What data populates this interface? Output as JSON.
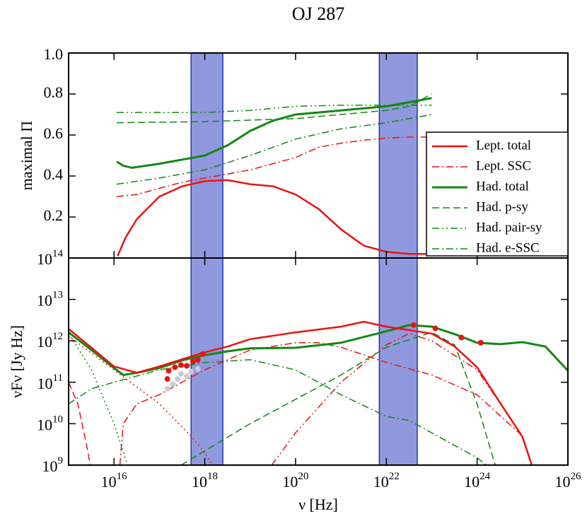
{
  "chart_data": [
    {
      "type": "line",
      "title": "OJ 287",
      "ylabel": "maximal Π",
      "xscale": "log",
      "xlim": [
        1000000000000000.0,
        1e+26
      ],
      "xticks": [
        1e+16,
        1e+18,
        1e+20,
        1e+22,
        1e+24
      ],
      "ylim": [
        0,
        1
      ],
      "yticks": [
        0.2,
        0.4,
        0.6,
        0.8,
        {
          "value": 1,
          "label": "1.0"
        }
      ],
      "bands": [
        [
          5e+17,
          2.5e+18
        ],
        [
          7e+21,
          4.8e+22
        ]
      ],
      "band_color": "#2233bb",
      "legend": "lower right",
      "series": [
        {
          "name": "Lept. total",
          "color": "#ee1111",
          "dash": "solid",
          "width": 2.5,
          "x": [
            1.2e+16,
            1.8e+16,
            3.2e+16,
            1e+17,
            3.2e+17,
            1e+18,
            3.2e+18,
            1e+19,
            3.2e+19,
            1e+20,
            3.2e+20,
            1e+21,
            3.2e+21,
            1e+22,
            3.2e+22,
            8e+22
          ],
          "values": [
            0.01,
            0.1,
            0.19,
            0.3,
            0.35,
            0.375,
            0.38,
            0.36,
            0.35,
            0.31,
            0.24,
            0.14,
            0.06,
            0.03,
            0.02,
            0.02
          ]
        },
        {
          "name": "Lept. SSC",
          "color": "#ee1111",
          "dash": "dashdot",
          "width": 1.5,
          "x": [
            1.15e+16,
            3.2e+16,
            1e+17,
            3.2e+17,
            1e+18,
            3.2e+18,
            1e+19,
            1e+20,
            3.2e+20,
            1e+21,
            3.2e+21,
            1e+22,
            3.2e+22,
            8e+22
          ],
          "values": [
            0.3,
            0.31,
            0.34,
            0.37,
            0.39,
            0.41,
            0.43,
            0.49,
            0.54,
            0.56,
            0.575,
            0.585,
            0.59,
            0.59
          ]
        },
        {
          "name": "Had. total",
          "color": "#118811",
          "dash": "solid",
          "width": 3,
          "x": [
            1.15e+16,
            1.6e+16,
            2.5e+16,
            1e+17,
            3.2e+17,
            1e+18,
            3.2e+18,
            1e+19,
            3.2e+19,
            1e+20,
            1e+21,
            1e+22,
            3.2e+22,
            1e+23
          ],
          "values": [
            0.47,
            0.45,
            0.44,
            0.46,
            0.48,
            0.5,
            0.55,
            0.62,
            0.67,
            0.7,
            0.72,
            0.74,
            0.76,
            0.78
          ]
        },
        {
          "name": "Had. p-sy",
          "color": "#118811",
          "dash": "dashed",
          "width": 1.5,
          "x": [
            1.15e+16,
            1e+18,
            1e+20,
            1e+22,
            3.2e+22,
            1e+23
          ],
          "values": [
            0.66,
            0.665,
            0.68,
            0.72,
            0.74,
            0.8
          ]
        },
        {
          "name": "Had. pair-sy",
          "color": "#118811",
          "dash": "dashdotdot",
          "width": 1.5,
          "x": [
            1.15e+16,
            1e+18,
            1e+19,
            1e+20,
            1e+21,
            1e+22,
            1e+23
          ],
          "values": [
            0.71,
            0.71,
            0.72,
            0.74,
            0.745,
            0.745,
            0.745
          ]
        },
        {
          "name": "Had. e-SSC",
          "color": "#118811",
          "dash": "dashdot",
          "width": 1.5,
          "x": [
            1.15e+16,
            1e+17,
            1e+18,
            1e+19,
            1e+20,
            1e+21,
            1e+22,
            1e+23
          ],
          "values": [
            0.36,
            0.39,
            0.43,
            0.5,
            0.58,
            0.63,
            0.66,
            0.7
          ]
        }
      ]
    },
    {
      "type": "line",
      "xlabel": "ν [Hz]",
      "ylabel": "νFν [Jy Hz]",
      "xscale": "log",
      "yscale": "log",
      "xlim": [
        1000000000000000.0,
        1e+26
      ],
      "xticks": [
        {
          "value": 1e+16,
          "label": "10^16"
        },
        {
          "value": 1e+18,
          "label": "10^18"
        },
        {
          "value": 1e+20,
          "label": "10^20"
        },
        {
          "value": 1e+22,
          "label": "10^22"
        },
        {
          "value": 1e+24,
          "label": "10^24"
        },
        {
          "value": 1e+26,
          "label": "10^26"
        }
      ],
      "ylim": [
        1000000000.0,
        100000000000000.0
      ],
      "yticks": [
        {
          "value": 1000000000.0,
          "label": "10^9"
        },
        {
          "value": 10000000000.0,
          "label": "10^10"
        },
        {
          "value": 100000000000.0,
          "label": "10^11"
        },
        {
          "value": 1000000000000.0,
          "label": "10^12"
        },
        {
          "value": 10000000000000.0,
          "label": "10^13"
        },
        {
          "value": 100000000000000.0,
          "label": "10^14"
        }
      ],
      "bands": [
        [
          5e+17,
          2.5e+18
        ],
        [
          7e+21,
          4.8e+22
        ]
      ],
      "band_color": "#2233bb",
      "series": [
        {
          "color": "#ee1111",
          "dash": "dashed",
          "width": 1.5,
          "x": [
            1000000000000000.0,
            1600000000000000.0,
            2500000000000000.0,
            3000000000000000.0
          ],
          "values": [
            100000000000.0,
            30000000000.0,
            3000000000.0,
            1000000000.0
          ]
        },
        {
          "color": "#ee1111",
          "dash": "dotted",
          "width": 1.5,
          "x": [
            1000000000000000.0,
            1e+16,
            1e+17,
            5e+17,
            1e+18,
            1.5e+18
          ],
          "values": [
            1300000000000.0,
            200000000000.0,
            30000000000.0,
            5000000000.0,
            2000000000.0,
            1000000000.0
          ]
        },
        {
          "color": "#ee1111",
          "dash": "dashdotdot",
          "width": 1.5,
          "x": [
            3e+19,
            1e+20,
            1e+21,
            1e+22,
            3.2e+22,
            1e+23,
            1e+24,
            1e+25,
            1.6e+25
          ],
          "values": [
            1000000000.0,
            6000000000.0,
            100000000000.0,
            800000000000.0,
            1500000000000.0,
            1000000000000.0,
            200000000000.0,
            5000000000.0,
            1000000000.0
          ]
        },
        {
          "color": "#118811",
          "dash": "dotted",
          "width": 1.5,
          "x": [
            1000000000000000.0,
            3200000000000000.0,
            1e+16,
            2e+16
          ],
          "values": [
            1500000000000.0,
            200000000000.0,
            10000000000.0,
            1000000000.0
          ]
        },
        {
          "name": "Had. p-sy",
          "color": "#118811",
          "dash": "dashed",
          "width": 1.5,
          "x": [
            3e+17,
            1e+19,
            1e+21,
            1e+22,
            1e+23,
            3.2e+23,
            1e+24,
            2.5e+24
          ],
          "values": [
            1000000000.0,
            10000000000.0,
            150000000000.0,
            700000000000.0,
            1600000000000.0,
            800000000000.0,
            30000000000.0,
            1000000000.0
          ]
        },
        {
          "name": "Had. e-SSC",
          "color": "#118811",
          "dash": "dashdot",
          "width": 1.5,
          "x": [
            1000000000000000.0,
            3200000000000000.0,
            1e+16,
            1e+17,
            1e+18,
            1e+19,
            1e+20,
            1e+21,
            1e+22,
            3.2e+22,
            1e+23,
            1e+24,
            1.6e+24
          ],
          "values": [
            30000000000.0,
            70000000000.0,
            100000000000.0,
            200000000000.0,
            300000000000.0,
            350000000000.0,
            200000000000.0,
            50000000000.0,
            15000000000.0,
            12000000000.0,
            6000000000.0,
            1500000000.0,
            1000000000.0
          ]
        },
        {
          "name": "Lept. SSC",
          "color": "#ee1111",
          "dash": "dashdot",
          "width": 1.5,
          "x": [
            1.35e+16,
            1.6e+16,
            3.2e+16,
            1e+17,
            1e+18,
            1e+19,
            1e+20,
            3.2e+20,
            1e+21,
            1e+22,
            1e+23,
            1e+24,
            1e+25,
            1.6e+25
          ],
          "values": [
            1000000000.0,
            10000000000.0,
            30000000000.0,
            50000000000.0,
            200000000000.0,
            600000000000.0,
            900000000000.0,
            900000000000.0,
            700000000000.0,
            300000000000.0,
            150000000000.0,
            50000000000.0,
            5000000000.0,
            1000000000.0
          ]
        },
        {
          "name": "Had. total",
          "color": "#118811",
          "dash": "solid",
          "width": 3,
          "x": [
            1000000000000000.0,
            3200000000000000.0,
            1e+16,
            1.6e+16,
            3.2e+16,
            1e+17,
            3.2e+17,
            1e+18,
            3.2e+18,
            1e+19,
            1e+20,
            1e+21,
            1e+22,
            3.2e+22,
            1e+23,
            3.2e+23,
            1e+24,
            3.2e+24,
            1e+25,
            3.2e+25,
            1e+26
          ],
          "values": [
            1600000000000.0,
            600000000000.0,
            220000000000.0,
            150000000000.0,
            170000000000.0,
            220000000000.0,
            340000000000.0,
            450000000000.0,
            560000000000.0,
            660000000000.0,
            680000000000.0,
            900000000000.0,
            1700000000000.0,
            2400000000000.0,
            2200000000000.0,
            1450000000000.0,
            900000000000.0,
            830000000000.0,
            930000000000.0,
            730000000000.0,
            190000000000.0
          ]
        },
        {
          "name": "Lept. total",
          "color": "#ee1111",
          "dash": "solid",
          "width": 2.5,
          "x": [
            1000000000000000.0,
            3200000000000000.0,
            1e+16,
            1.6e+16,
            3.2e+16,
            1e+17,
            3.2e+17,
            1e+18,
            3.2e+18,
            1e+19,
            1e+20,
            1e+21,
            3.2e+21,
            1e+22,
            1e+23,
            3.2e+23,
            1e+24,
            3.2e+24,
            1e+25,
            1.6e+25
          ],
          "values": [
            1950000000000.0,
            680000000000.0,
            240000000000.0,
            210000000000.0,
            170000000000.0,
            240000000000.0,
            360000000000.0,
            530000000000.0,
            730000000000.0,
            1100000000000.0,
            1600000000000.0,
            2200000000000.0,
            2900000000000.0,
            2200000000000.0,
            1500000000000.0,
            730000000000.0,
            230000000000.0,
            32000000000.0,
            4800000000.0,
            1000000000.0
          ]
        },
        {
          "color": "#cccccc",
          "dash": "points",
          "x": [
            1.5e+17,
            2e+17,
            2.5e+17,
            3e+17,
            4e+17,
            5e+17,
            7e+17
          ],
          "values": [
            70000000000.0,
            90000000000.0,
            120000000000.0,
            160000000000.0,
            140000000000.0,
            180000000000.0,
            210000000000.0
          ]
        },
        {
          "color": "#ee1111",
          "dash": "points",
          "x": [
            1.5e+17,
            1.6e+17,
            2.2e+17,
            3e+17,
            4e+17,
            5.5e+17,
            7e+17,
            9e+17,
            4e+22,
            1.2e+23,
            4.5e+23,
            1.2e+24
          ],
          "values": [
            120000000000.0,
            190000000000.0,
            230000000000.0,
            260000000000.0,
            250000000000.0,
            320000000000.0,
            350000000000.0,
            480000000000.0,
            2400000000000.0,
            2000000000000.0,
            1200000000000.0,
            900000000000.0
          ]
        }
      ]
    }
  ]
}
